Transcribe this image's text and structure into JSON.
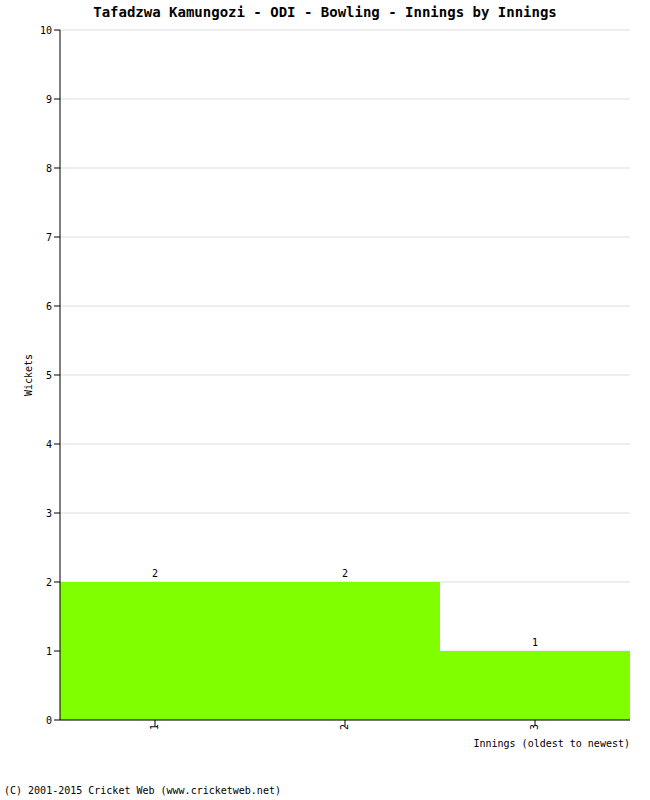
{
  "chart_data": {
    "type": "bar",
    "title": "Tafadzwa Kamungozi - ODI - Bowling - Innings by Innings",
    "x_label": "Innings (oldest to newest)",
    "y_label": "Wickets",
    "annotations": [
      "(C) 2001-2015 Cricket Web (www.cricketweb.net)"
    ],
    "categories": [
      "1",
      "2",
      "3"
    ],
    "values": [
      2,
      2,
      1
    ],
    "color": "#7fff00",
    "ylim": [
      0,
      10
    ],
    "yticks": [
      0,
      1,
      2,
      3,
      4,
      5,
      6,
      7,
      8,
      9,
      10
    ],
    "grid": true,
    "data_labels": true
  }
}
